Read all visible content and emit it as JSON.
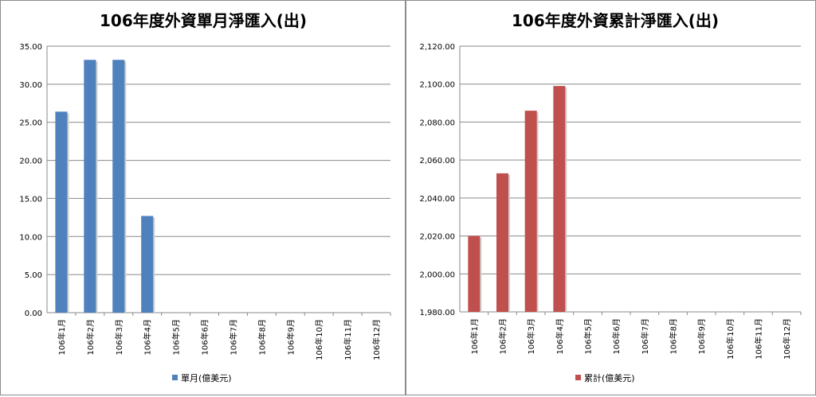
{
  "chart_data": [
    {
      "type": "bar",
      "title": "106年度外資單月淨匯入(出)",
      "categories": [
        "106年1月",
        "106年2月",
        "106年3月",
        "106年4月",
        "106年5月",
        "106年6月",
        "106年7月",
        "106年8月",
        "106年9月",
        "106年10月",
        "106年11月",
        "106年12月"
      ],
      "series": [
        {
          "name": "單月(億美元)",
          "values": [
            26.4,
            33.2,
            33.2,
            12.7,
            null,
            null,
            null,
            null,
            null,
            null,
            null,
            null
          ]
        }
      ],
      "ylim": [
        0,
        35
      ],
      "yticks": [
        "0.00",
        "5.00",
        "10.00",
        "15.00",
        "20.00",
        "25.00",
        "30.00",
        "35.00"
      ],
      "grid": true,
      "legend": "bottom",
      "color": "#4F81BD"
    },
    {
      "type": "bar",
      "title": "106年度外資累計淨匯入(出)",
      "categories": [
        "106年1月",
        "106年2月",
        "106年3月",
        "106年4月",
        "106年5月",
        "106年6月",
        "106年7月",
        "106年8月",
        "106年9月",
        "106年10月",
        "106年11月",
        "106年12月"
      ],
      "series": [
        {
          "name": "累計(億美元)",
          "values": [
            2020,
            2053,
            2086,
            2099,
            null,
            null,
            null,
            null,
            null,
            null,
            null,
            null
          ]
        }
      ],
      "ylim": [
        1980,
        2120
      ],
      "yticks": [
        "1,980.00",
        "2,000.00",
        "2,020.00",
        "2,040.00",
        "2,060.00",
        "2,080.00",
        "2,100.00",
        "2,120.00"
      ],
      "grid": true,
      "legend": "bottom",
      "color": "#C0504D"
    }
  ]
}
